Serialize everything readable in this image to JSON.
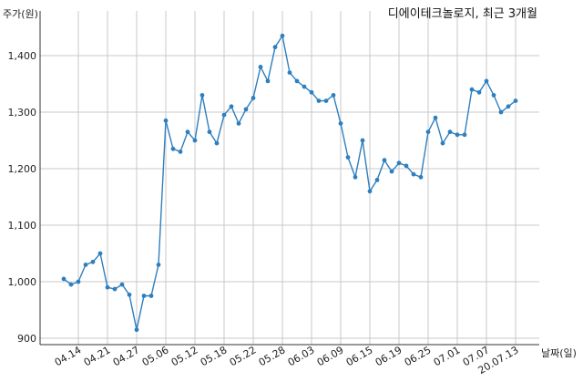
{
  "chart_data": {
    "type": "line",
    "title": "디에이테크놀로지, 최근 3개월",
    "ylabel": "주가(원)",
    "xlabel": "날짜(일)",
    "ylim": [
      890,
      1450
    ],
    "yticks": [
      900,
      1000,
      1100,
      1200,
      1300,
      1400
    ],
    "ytick_labels": [
      "900",
      "1,000",
      "1,100",
      "1,200",
      "1,300",
      "1,400"
    ],
    "xtick_labels": [
      "04.14",
      "04.21",
      "04.27",
      "05.06",
      "05.12",
      "05.18",
      "05.22",
      "05.28",
      "06.03",
      "06.09",
      "06.15",
      "06.19",
      "06.25",
      "07.01",
      "07.07",
      "20.07.13"
    ],
    "xtick_index": [
      2,
      6,
      10,
      14,
      18,
      22,
      26,
      30,
      34,
      38,
      42,
      46,
      50,
      54,
      58,
      62
    ],
    "grid": true,
    "line_color": "#2e7fbf",
    "series": [
      {
        "values": [
          1005,
          995,
          1000,
          1030,
          1035,
          1050,
          990,
          987,
          995,
          977,
          915,
          975,
          975,
          1030,
          1285,
          1235,
          1230,
          1265,
          1250,
          1330,
          1265,
          1245,
          1295,
          1310,
          1280,
          1305,
          1325,
          1380,
          1355,
          1415,
          1435,
          1370,
          1355,
          1345,
          1335,
          1320,
          1320,
          1330,
          1280,
          1220,
          1185,
          1250,
          1160,
          1180,
          1215,
          1195,
          1210,
          1205,
          1190,
          1185,
          1265,
          1290,
          1245,
          1265,
          1260,
          1260,
          1340,
          1335,
          1355,
          1330,
          1300,
          1310,
          1320
        ]
      }
    ]
  }
}
